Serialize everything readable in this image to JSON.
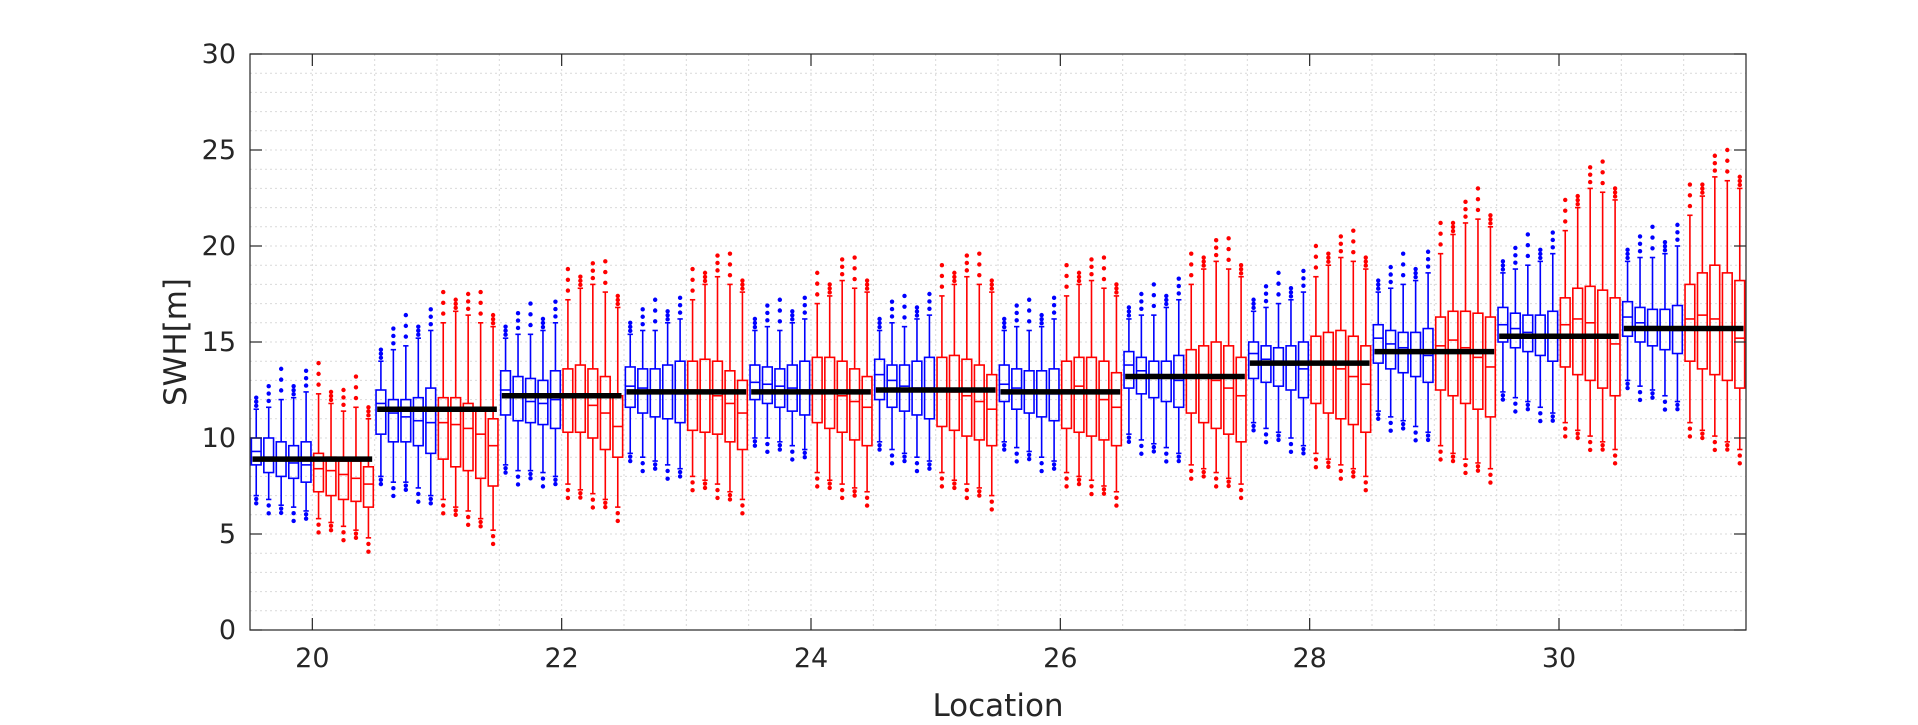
{
  "chart_data": {
    "type": "box",
    "xlabel": "Location",
    "ylabel": "SWH[m]",
    "xlim": [
      19.5,
      31.5
    ],
    "ylim": [
      0,
      30
    ],
    "xticks": [
      "20",
      "22",
      "24",
      "26",
      "28",
      "30"
    ],
    "yticks": [
      "0",
      "5",
      "10",
      "15",
      "20",
      "25",
      "30"
    ],
    "grid": "dotted major and minor",
    "box_colors": {
      "first_half": "#0000ff",
      "second_half": "#ff0000",
      "mean_line": "#000000"
    },
    "boxes_per_location": 10,
    "locations": [
      {
        "location": 20,
        "mean": 8.9,
        "medians": [
          9.3,
          9.0,
          8.9,
          8.7,
          8.6,
          8.4,
          8.3,
          8.1,
          7.9,
          7.6
        ],
        "q1": [
          8.6,
          8.2,
          8.0,
          7.9,
          7.7,
          7.2,
          7.0,
          6.8,
          6.7,
          6.4
        ],
        "q3": [
          10.0,
          10.0,
          9.8,
          9.6,
          9.8,
          9.2,
          9.0,
          8.8,
          8.8,
          8.5
        ],
        "wlow": [
          7.0,
          6.8,
          6.5,
          6.4,
          6.2,
          5.8,
          5.6,
          5.4,
          5.2,
          4.8
        ],
        "whigh": [
          11.5,
          11.6,
          12.0,
          12.1,
          12.4,
          12.3,
          11.8,
          11.4,
          11.6,
          11.0
        ]
      },
      {
        "location": 21,
        "mean": 11.5,
        "medians": [
          11.8,
          11.3,
          11.1,
          10.9,
          10.8,
          10.8,
          10.7,
          10.5,
          10.2,
          9.6
        ],
        "q1": [
          10.2,
          9.8,
          9.8,
          9.6,
          9.2,
          8.9,
          8.5,
          8.3,
          7.9,
          7.5
        ],
        "q3": [
          12.5,
          12.0,
          12.0,
          12.1,
          12.6,
          12.1,
          12.1,
          11.8,
          11.6,
          11.0
        ],
        "wlow": [
          8.0,
          7.7,
          7.7,
          7.4,
          7.0,
          6.8,
          6.4,
          6.2,
          5.8,
          5.2
        ],
        "whigh": [
          14.0,
          14.6,
          14.8,
          15.2,
          15.6,
          16.0,
          16.6,
          16.4,
          16.0,
          15.8
        ]
      },
      {
        "location": 22,
        "mean": 12.2,
        "medians": [
          12.5,
          12.2,
          11.9,
          11.8,
          12.0,
          12.3,
          12.1,
          11.7,
          11.3,
          10.6
        ],
        "q1": [
          11.2,
          10.9,
          10.8,
          10.7,
          10.5,
          10.3,
          10.3,
          10.0,
          9.4,
          9.0
        ],
        "q3": [
          13.5,
          13.2,
          13.1,
          13.0,
          13.5,
          13.6,
          13.8,
          13.6,
          13.2,
          12.2
        ],
        "wlow": [
          8.6,
          8.3,
          8.3,
          8.2,
          8.0,
          7.6,
          7.3,
          7.1,
          6.8,
          6.4
        ],
        "whigh": [
          15.2,
          15.4,
          15.4,
          15.6,
          16.0,
          17.2,
          17.8,
          18.0,
          17.6,
          16.8
        ]
      },
      {
        "location": 23,
        "mean": 12.4,
        "medians": [
          12.7,
          12.6,
          12.5,
          12.4,
          12.3,
          12.5,
          12.4,
          12.2,
          11.8,
          11.3
        ],
        "q1": [
          11.6,
          11.3,
          11.1,
          11.0,
          10.8,
          10.4,
          10.3,
          10.2,
          9.8,
          9.4
        ],
        "q3": [
          13.7,
          13.6,
          13.6,
          13.8,
          14.0,
          14.0,
          14.1,
          14.0,
          13.5,
          13.0
        ],
        "wlow": [
          9.2,
          9.0,
          8.8,
          8.6,
          8.4,
          8.0,
          7.8,
          7.6,
          7.2,
          6.8
        ],
        "whigh": [
          15.4,
          15.6,
          15.6,
          16.0,
          16.2,
          17.2,
          18.0,
          18.4,
          18.0,
          17.6
        ]
      },
      {
        "location": 24,
        "mean": 12.4,
        "medians": [
          12.9,
          12.8,
          12.7,
          12.6,
          12.5,
          12.5,
          12.4,
          12.2,
          11.9,
          11.6
        ],
        "q1": [
          12.0,
          11.8,
          11.6,
          11.4,
          11.2,
          10.8,
          10.5,
          10.3,
          9.9,
          9.6
        ],
        "q3": [
          13.8,
          13.7,
          13.6,
          13.8,
          14.0,
          14.2,
          14.2,
          14.0,
          13.6,
          13.2
        ],
        "wlow": [
          10.0,
          10.0,
          9.8,
          9.6,
          9.4,
          8.2,
          7.8,
          7.6,
          7.4,
          7.2
        ],
        "whigh": [
          15.6,
          15.8,
          15.6,
          16.0,
          16.2,
          17.0,
          17.4,
          18.2,
          17.8,
          17.6
        ]
      },
      {
        "location": 25,
        "mean": 12.5,
        "medians": [
          13.3,
          13.0,
          12.7,
          12.6,
          12.6,
          12.5,
          12.4,
          12.2,
          11.9,
          11.5
        ],
        "q1": [
          12.0,
          11.6,
          11.4,
          11.2,
          11.0,
          10.6,
          10.4,
          10.1,
          9.9,
          9.6
        ],
        "q3": [
          14.1,
          13.8,
          13.8,
          14.0,
          14.2,
          14.2,
          14.3,
          14.1,
          13.8,
          13.3
        ],
        "wlow": [
          9.8,
          9.4,
          9.2,
          9.0,
          8.8,
          8.2,
          7.8,
          7.6,
          7.4,
          7.0
        ],
        "whigh": [
          15.6,
          16.0,
          15.8,
          16.2,
          16.4,
          17.4,
          18.0,
          18.4,
          18.0,
          17.6
        ]
      },
      {
        "location": 26,
        "mean": 12.4,
        "medians": [
          12.8,
          12.6,
          12.5,
          12.4,
          12.3,
          12.5,
          12.7,
          12.4,
          12.0,
          11.6
        ],
        "q1": [
          11.9,
          11.5,
          11.3,
          11.1,
          10.9,
          10.5,
          10.3,
          10.1,
          9.9,
          9.6
        ],
        "q3": [
          13.8,
          13.6,
          13.5,
          13.5,
          13.6,
          14.0,
          14.2,
          14.2,
          14.0,
          13.4
        ],
        "wlow": [
          9.8,
          9.5,
          9.3,
          9.0,
          8.8,
          8.2,
          8.0,
          7.8,
          7.5,
          7.2
        ],
        "whigh": [
          15.6,
          15.8,
          15.6,
          15.8,
          16.2,
          17.4,
          18.0,
          18.2,
          17.8,
          17.4
        ]
      },
      {
        "location": 27,
        "mean": 13.2,
        "medians": [
          13.8,
          13.5,
          13.3,
          13.2,
          13.0,
          13.2,
          13.3,
          13.0,
          12.6,
          12.2
        ],
        "q1": [
          12.6,
          12.3,
          12.1,
          11.9,
          11.6,
          11.3,
          10.8,
          10.5,
          10.2,
          9.8
        ],
        "q3": [
          14.5,
          14.2,
          14.0,
          14.0,
          14.3,
          14.6,
          14.8,
          15.0,
          14.8,
          14.2
        ],
        "wlow": [
          10.2,
          9.9,
          9.7,
          9.5,
          9.2,
          8.6,
          8.4,
          8.2,
          7.9,
          7.6
        ],
        "whigh": [
          16.2,
          16.4,
          16.4,
          16.8,
          17.2,
          18.0,
          18.8,
          19.2,
          18.8,
          18.4
        ]
      },
      {
        "location": 28,
        "mean": 13.9,
        "medians": [
          14.4,
          14.1,
          14.0,
          13.8,
          13.6,
          13.9,
          14.0,
          13.6,
          13.2,
          12.8
        ],
        "q1": [
          13.1,
          12.9,
          12.7,
          12.5,
          12.1,
          11.8,
          11.3,
          11.0,
          10.7,
          10.3
        ],
        "q3": [
          15.0,
          14.8,
          14.7,
          14.8,
          15.0,
          15.3,
          15.5,
          15.6,
          15.3,
          14.8
        ],
        "wlow": [
          10.8,
          10.5,
          10.3,
          10.0,
          9.6,
          9.2,
          8.9,
          8.6,
          8.4,
          8.0
        ],
        "whigh": [
          16.6,
          16.8,
          17.0,
          17.2,
          17.6,
          18.4,
          19.0,
          19.4,
          19.2,
          18.8
        ]
      },
      {
        "location": 29,
        "mean": 14.5,
        "medians": [
          15.2,
          14.9,
          14.7,
          14.5,
          14.3,
          14.8,
          15.1,
          14.7,
          14.2,
          13.7
        ],
        "q1": [
          13.9,
          13.6,
          13.4,
          13.2,
          12.9,
          12.5,
          12.2,
          11.8,
          11.5,
          11.1
        ],
        "q3": [
          15.9,
          15.6,
          15.5,
          15.5,
          15.7,
          16.3,
          16.6,
          16.6,
          16.5,
          16.3
        ],
        "wlow": [
          11.4,
          11.1,
          10.9,
          10.6,
          10.3,
          9.6,
          9.2,
          8.9,
          8.7,
          8.4
        ],
        "whigh": [
          17.6,
          17.8,
          18.0,
          18.2,
          18.6,
          19.6,
          20.6,
          21.2,
          21.4,
          21.0
        ]
      },
      {
        "location": 30,
        "mean": 15.3,
        "medians": [
          15.9,
          15.7,
          15.5,
          15.4,
          15.3,
          15.9,
          16.2,
          16.0,
          15.4,
          14.9
        ],
        "q1": [
          15.0,
          14.7,
          14.5,
          14.3,
          14.0,
          13.7,
          13.3,
          13.0,
          12.6,
          12.2
        ],
        "q3": [
          16.8,
          16.5,
          16.4,
          16.4,
          16.6,
          17.3,
          17.8,
          17.9,
          17.7,
          17.3
        ],
        "wlow": [
          12.4,
          12.1,
          11.9,
          11.6,
          11.3,
          10.8,
          10.4,
          10.1,
          9.8,
          9.4
        ],
        "whigh": [
          18.6,
          18.8,
          19.0,
          19.2,
          19.6,
          20.8,
          22.0,
          23.0,
          22.8,
          22.4
        ]
      },
      {
        "location": 31,
        "mean": 15.7,
        "medians": [
          16.3,
          16.0,
          15.8,
          15.7,
          15.6,
          16.2,
          16.4,
          16.2,
          15.7,
          15.2
        ],
        "q1": [
          15.3,
          15.0,
          14.8,
          14.6,
          14.4,
          14.0,
          13.6,
          13.3,
          13.0,
          12.6
        ],
        "q3": [
          17.1,
          16.8,
          16.7,
          16.7,
          16.9,
          18.0,
          18.6,
          19.0,
          18.6,
          18.2
        ],
        "wlow": [
          13.0,
          12.7,
          12.5,
          12.2,
          11.9,
          10.8,
          10.4,
          10.1,
          9.8,
          9.4
        ],
        "whigh": [
          19.2,
          19.4,
          19.4,
          19.6,
          20.0,
          21.6,
          22.6,
          23.6,
          23.4,
          23.0
        ]
      }
    ]
  }
}
